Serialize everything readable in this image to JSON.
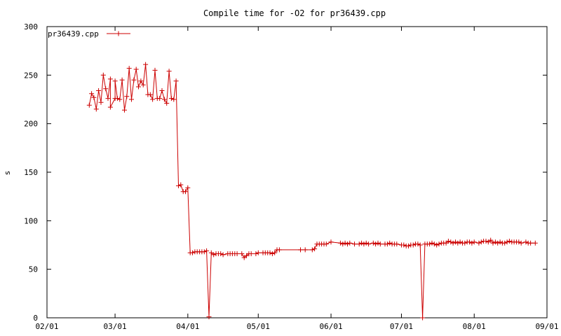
{
  "chart_data": {
    "type": "line",
    "title": "Compile time for -O2 for pr36439.cpp",
    "xlabel": "",
    "ylabel": "s",
    "xlim": [
      "02/01",
      "09/01"
    ],
    "ylim": [
      0,
      300
    ],
    "grid": false,
    "legend_position": "top-left",
    "x_tick_labels": [
      "02/01",
      "03/01",
      "04/01",
      "05/01",
      "06/01",
      "07/01",
      "08/01",
      "09/01"
    ],
    "y_tick_labels": [
      "0",
      "50",
      "100",
      "150",
      "200",
      "250",
      "300"
    ],
    "color": "#cc0000",
    "series": [
      {
        "name": "pr36439.cpp",
        "points": [
          [
            "02/19",
            219
          ],
          [
            "02/20",
            231
          ],
          [
            "02/21",
            227
          ],
          [
            "02/22",
            215
          ],
          [
            "02/23",
            234
          ],
          [
            "02/24",
            222
          ],
          [
            "02/25",
            250
          ],
          [
            "02/26",
            236
          ],
          [
            "02/27",
            226
          ],
          [
            "02/28",
            246
          ],
          [
            "02/28",
            217
          ],
          [
            "03/01",
            226
          ],
          [
            "03/01",
            244
          ],
          [
            "03/02",
            226
          ],
          [
            "03/03",
            225
          ],
          [
            "03/04",
            245
          ],
          [
            "03/05",
            214
          ],
          [
            "03/06",
            228
          ],
          [
            "03/07",
            257
          ],
          [
            "03/08",
            225
          ],
          [
            "03/09",
            245
          ],
          [
            "03/10",
            256
          ],
          [
            "03/11",
            238
          ],
          [
            "03/12",
            244
          ],
          [
            "03/13",
            240
          ],
          [
            "03/14",
            261
          ],
          [
            "03/15",
            230
          ],
          [
            "03/16",
            230
          ],
          [
            "03/17",
            225
          ],
          [
            "03/18",
            255
          ],
          [
            "03/19",
            226
          ],
          [
            "03/20",
            226
          ],
          [
            "03/21",
            234
          ],
          [
            "03/22",
            225
          ],
          [
            "03/23",
            221
          ],
          [
            "03/24",
            254
          ],
          [
            "03/25",
            226
          ],
          [
            "03/26",
            225
          ],
          [
            "03/27",
            244
          ],
          [
            "03/28",
            136
          ],
          [
            "03/29",
            137
          ],
          [
            "03/30",
            130
          ],
          [
            "03/31",
            130
          ],
          [
            "04/01",
            134
          ],
          [
            "04/02",
            67
          ],
          [
            "04/03",
            67
          ],
          [
            "04/04",
            68
          ],
          [
            "04/05",
            68
          ],
          [
            "04/06",
            68
          ],
          [
            "04/07",
            68
          ],
          [
            "04/08",
            68
          ],
          [
            "04/09",
            69
          ],
          [
            "04/10",
            1
          ],
          [
            "04/11",
            67
          ],
          [
            "04/12",
            65
          ],
          [
            "04/13",
            66
          ],
          [
            "04/14",
            66
          ],
          [
            "04/15",
            66
          ],
          [
            "04/16",
            65
          ],
          [
            "04/18",
            66
          ],
          [
            "04/19",
            66
          ],
          [
            "04/20",
            66
          ],
          [
            "04/21",
            66
          ],
          [
            "04/22",
            66
          ],
          [
            "04/24",
            66
          ],
          [
            "04/25",
            62
          ],
          [
            "04/26",
            64
          ],
          [
            "04/27",
            66
          ],
          [
            "04/28",
            66
          ],
          [
            "04/30",
            66
          ],
          [
            "05/01",
            67
          ],
          [
            "05/03",
            67
          ],
          [
            "05/04",
            67
          ],
          [
            "05/05",
            67
          ],
          [
            "05/06",
            67
          ],
          [
            "05/07",
            66
          ],
          [
            "05/08",
            67
          ],
          [
            "05/09",
            70
          ],
          [
            "05/10",
            70
          ],
          [
            "05/19",
            70
          ],
          [
            "05/21",
            70
          ],
          [
            "05/24",
            70
          ],
          [
            "05/25",
            71
          ],
          [
            "05/26",
            76
          ],
          [
            "05/27",
            76
          ],
          [
            "05/28",
            76
          ],
          [
            "05/29",
            76
          ],
          [
            "05/30",
            76
          ],
          [
            "06/01",
            78
          ],
          [
            "06/05",
            77
          ],
          [
            "06/06",
            76
          ],
          [
            "06/07",
            77
          ],
          [
            "06/08",
            76
          ],
          [
            "06/09",
            77
          ],
          [
            "06/11",
            76
          ],
          [
            "06/13",
            76
          ],
          [
            "06/14",
            77
          ],
          [
            "06/15",
            76
          ],
          [
            "06/16",
            77
          ],
          [
            "06/17",
            76
          ],
          [
            "06/19",
            77
          ],
          [
            "06/20",
            76
          ],
          [
            "06/21",
            77
          ],
          [
            "06/22",
            76
          ],
          [
            "06/24",
            76
          ],
          [
            "06/25",
            76
          ],
          [
            "06/26",
            77
          ],
          [
            "06/27",
            76
          ],
          [
            "06/28",
            76
          ],
          [
            "06/29",
            76
          ],
          [
            "07/01",
            75
          ],
          [
            "07/02",
            75
          ],
          [
            "07/03",
            74
          ],
          [
            "07/04",
            74
          ],
          [
            "07/05",
            75
          ],
          [
            "07/06",
            75
          ],
          [
            "07/07",
            76
          ],
          [
            "07/08",
            76
          ],
          [
            "07/09",
            75
          ],
          [
            "07/10",
            0
          ],
          [
            "07/11",
            76
          ],
          [
            "07/12",
            76
          ],
          [
            "07/13",
            76
          ],
          [
            "07/14",
            77
          ],
          [
            "07/15",
            76
          ],
          [
            "07/16",
            75
          ],
          [
            "07/17",
            76
          ],
          [
            "07/18",
            77
          ],
          [
            "07/19",
            77
          ],
          [
            "07/20",
            77
          ],
          [
            "07/21",
            79
          ],
          [
            "07/22",
            78
          ],
          [
            "07/23",
            77
          ],
          [
            "07/24",
            78
          ],
          [
            "07/25",
            77
          ],
          [
            "07/26",
            78
          ],
          [
            "07/27",
            77
          ],
          [
            "07/28",
            77
          ],
          [
            "07/29",
            78
          ],
          [
            "07/30",
            78
          ],
          [
            "07/31",
            77
          ],
          [
            "08/01",
            78
          ],
          [
            "08/03",
            77
          ],
          [
            "08/04",
            78
          ],
          [
            "08/05",
            79
          ],
          [
            "08/06",
            79
          ],
          [
            "08/07",
            78
          ],
          [
            "08/08",
            80
          ],
          [
            "08/09",
            77
          ],
          [
            "08/10",
            78
          ],
          [
            "08/11",
            77
          ],
          [
            "08/12",
            78
          ],
          [
            "08/13",
            77
          ],
          [
            "08/14",
            77
          ],
          [
            "08/15",
            78
          ],
          [
            "08/16",
            79
          ],
          [
            "08/17",
            78
          ],
          [
            "08/18",
            78
          ],
          [
            "08/19",
            78
          ],
          [
            "08/20",
            78
          ],
          [
            "08/21",
            77
          ],
          [
            "08/23",
            78
          ],
          [
            "08/24",
            77
          ],
          [
            "08/25",
            77
          ],
          [
            "08/27",
            77
          ]
        ]
      }
    ]
  }
}
